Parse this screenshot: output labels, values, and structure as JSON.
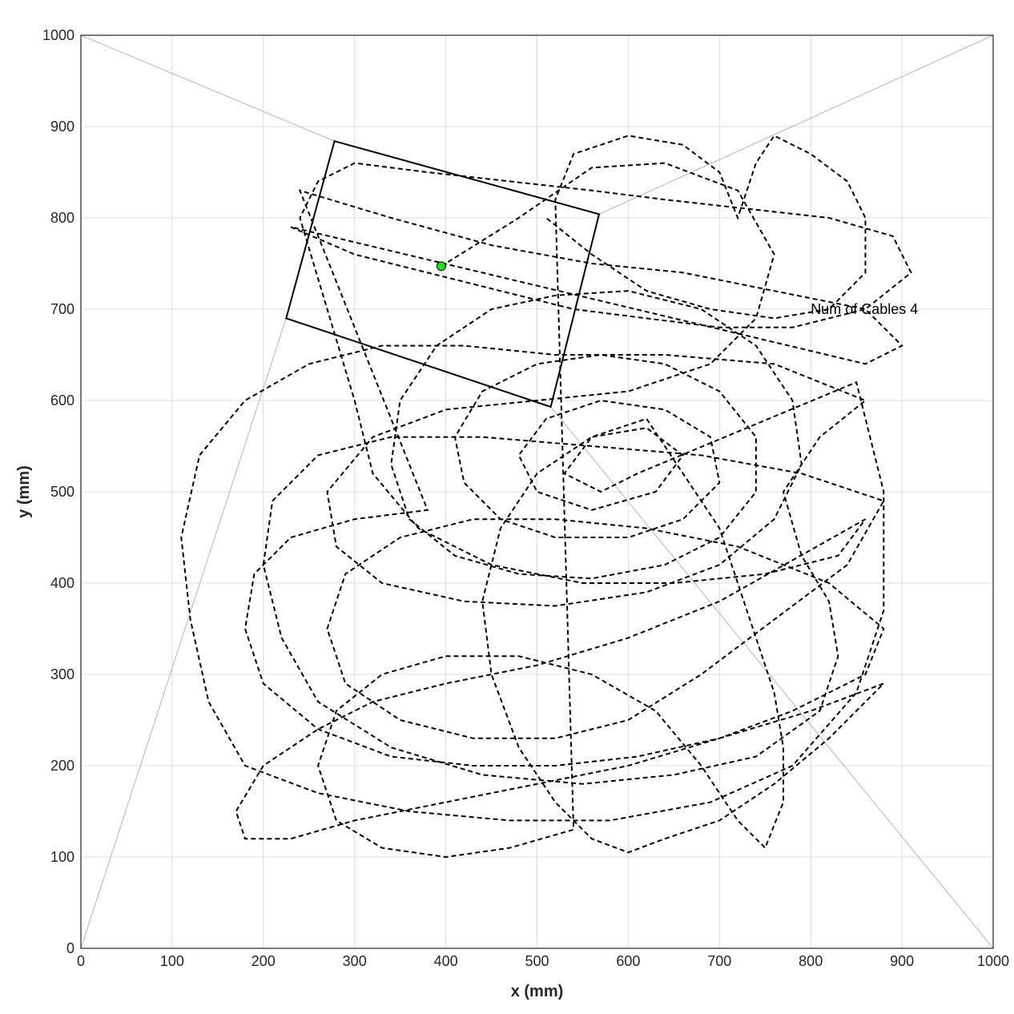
{
  "chart_data": {
    "type": "line",
    "title": "",
    "xlabel": "x (mm)",
    "ylabel": "y (mm)",
    "xlim": [
      0,
      1000
    ],
    "ylim": [
      0,
      1000
    ],
    "xticks": [
      0,
      100,
      200,
      300,
      400,
      500,
      600,
      700,
      800,
      900,
      1000
    ],
    "yticks": [
      0,
      100,
      200,
      300,
      400,
      500,
      600,
      700,
      800,
      900,
      1000
    ],
    "grid": true,
    "annotation": {
      "text": "Num of Cables 4",
      "x": 800,
      "y": 700
    },
    "anchors": [
      [
        0,
        0
      ],
      [
        1000,
        0
      ],
      [
        1000,
        1000
      ],
      [
        0,
        1000
      ]
    ],
    "platform_corners": [
      [
        225,
        690
      ],
      [
        515,
        593
      ],
      [
        568,
        804
      ],
      [
        278,
        884
      ]
    ],
    "end_effector": {
      "x": 395,
      "y": 747,
      "color": "#22dd22"
    },
    "trajectory_style": "black dashed",
    "trajectory": [
      [
        395,
        747
      ],
      [
        480,
        800
      ],
      [
        560,
        855
      ],
      [
        640,
        860
      ],
      [
        720,
        830
      ],
      [
        760,
        760
      ],
      [
        740,
        690
      ],
      [
        690,
        640
      ],
      [
        600,
        610
      ],
      [
        500,
        600
      ],
      [
        400,
        590
      ],
      [
        320,
        560
      ],
      [
        270,
        500
      ],
      [
        280,
        440
      ],
      [
        330,
        400
      ],
      [
        420,
        380
      ],
      [
        520,
        375
      ],
      [
        620,
        390
      ],
      [
        700,
        420
      ],
      [
        760,
        470
      ],
      [
        790,
        530
      ],
      [
        780,
        600
      ],
      [
        740,
        660
      ],
      [
        680,
        700
      ],
      [
        600,
        720
      ],
      [
        520,
        715
      ],
      [
        450,
        700
      ],
      [
        390,
        660
      ],
      [
        350,
        600
      ],
      [
        340,
        530
      ],
      [
        360,
        470
      ],
      [
        410,
        430
      ],
      [
        480,
        410
      ],
      [
        560,
        405
      ],
      [
        640,
        420
      ],
      [
        700,
        450
      ],
      [
        740,
        500
      ],
      [
        740,
        560
      ],
      [
        700,
        610
      ],
      [
        640,
        640
      ],
      [
        570,
        650
      ],
      [
        500,
        640
      ],
      [
        440,
        610
      ],
      [
        410,
        560
      ],
      [
        420,
        510
      ],
      [
        460,
        470
      ],
      [
        520,
        450
      ],
      [
        600,
        450
      ],
      [
        660,
        470
      ],
      [
        700,
        510
      ],
      [
        690,
        560
      ],
      [
        640,
        590
      ],
      [
        570,
        600
      ],
      [
        510,
        580
      ],
      [
        480,
        540
      ],
      [
        500,
        500
      ],
      [
        560,
        480
      ],
      [
        630,
        500
      ],
      [
        660,
        540
      ],
      [
        620,
        570
      ],
      [
        560,
        560
      ],
      [
        530,
        520
      ],
      [
        570,
        500
      ],
      [
        610,
        520
      ],
      [
        850,
        620
      ],
      [
        880,
        500
      ],
      [
        880,
        370
      ],
      [
        850,
        280
      ],
      [
        780,
        200
      ],
      [
        690,
        160
      ],
      [
        580,
        140
      ],
      [
        470,
        140
      ],
      [
        360,
        150
      ],
      [
        260,
        170
      ],
      [
        180,
        200
      ],
      [
        140,
        270
      ],
      [
        120,
        360
      ],
      [
        110,
        450
      ],
      [
        130,
        540
      ],
      [
        180,
        600
      ],
      [
        250,
        640
      ],
      [
        330,
        660
      ],
      [
        420,
        660
      ],
      [
        520,
        650
      ],
      [
        640,
        650
      ],
      [
        760,
        640
      ],
      [
        860,
        600
      ],
      [
        810,
        560
      ],
      [
        770,
        500
      ],
      [
        790,
        430
      ],
      [
        820,
        380
      ],
      [
        830,
        320
      ],
      [
        810,
        260
      ],
      [
        740,
        210
      ],
      [
        650,
        190
      ],
      [
        550,
        180
      ],
      [
        440,
        190
      ],
      [
        340,
        220
      ],
      [
        260,
        270
      ],
      [
        220,
        340
      ],
      [
        200,
        420
      ],
      [
        210,
        490
      ],
      [
        260,
        540
      ],
      [
        340,
        560
      ],
      [
        440,
        560
      ],
      [
        560,
        550
      ],
      [
        680,
        540
      ],
      [
        790,
        520
      ],
      [
        880,
        490
      ],
      [
        840,
        420
      ],
      [
        760,
        360
      ],
      [
        680,
        300
      ],
      [
        600,
        250
      ],
      [
        520,
        230
      ],
      [
        430,
        230
      ],
      [
        350,
        250
      ],
      [
        290,
        290
      ],
      [
        270,
        350
      ],
      [
        290,
        410
      ],
      [
        350,
        450
      ],
      [
        430,
        470
      ],
      [
        520,
        470
      ],
      [
        620,
        460
      ],
      [
        720,
        440
      ],
      [
        820,
        400
      ],
      [
        880,
        350
      ],
      [
        860,
        300
      ],
      [
        780,
        260
      ],
      [
        700,
        230
      ],
      [
        610,
        210
      ],
      [
        520,
        200
      ],
      [
        430,
        200
      ],
      [
        340,
        210
      ],
      [
        260,
        240
      ],
      [
        200,
        290
      ],
      [
        180,
        350
      ],
      [
        190,
        410
      ],
      [
        230,
        450
      ],
      [
        300,
        470
      ],
      [
        380,
        480
      ],
      [
        240,
        830
      ],
      [
        340,
        800
      ],
      [
        450,
        770
      ],
      [
        560,
        750
      ],
      [
        660,
        740
      ],
      [
        760,
        720
      ],
      [
        860,
        700
      ],
      [
        900,
        660
      ],
      [
        860,
        640
      ],
      [
        230,
        790
      ],
      [
        300,
        760
      ],
      [
        380,
        740
      ],
      [
        460,
        720
      ],
      [
        540,
        700
      ],
      [
        620,
        690
      ],
      [
        700,
        680
      ],
      [
        780,
        680
      ],
      [
        860,
        700
      ],
      [
        910,
        740
      ],
      [
        890,
        780
      ],
      [
        820,
        800
      ],
      [
        730,
        810
      ],
      [
        640,
        820
      ],
      [
        560,
        830
      ],
      [
        470,
        840
      ],
      [
        380,
        850
      ],
      [
        300,
        860
      ],
      [
        260,
        840
      ],
      [
        240,
        800
      ],
      [
        300,
        600
      ],
      [
        320,
        520
      ],
      [
        370,
        460
      ],
      [
        450,
        420
      ],
      [
        550,
        400
      ],
      [
        650,
        400
      ],
      [
        750,
        410
      ],
      [
        830,
        430
      ],
      [
        860,
        470
      ],
      [
        700,
        380
      ],
      [
        600,
        340
      ],
      [
        500,
        310
      ],
      [
        400,
        290
      ],
      [
        320,
        270
      ],
      [
        260,
        240
      ],
      [
        200,
        200
      ],
      [
        170,
        150
      ],
      [
        180,
        120
      ],
      [
        230,
        120
      ],
      [
        300,
        140
      ],
      [
        400,
        160
      ],
      [
        500,
        180
      ],
      [
        600,
        200
      ],
      [
        700,
        230
      ],
      [
        800,
        260
      ],
      [
        880,
        290
      ],
      [
        820,
        230
      ],
      [
        760,
        180
      ],
      [
        700,
        140
      ],
      [
        640,
        120
      ],
      [
        600,
        105
      ],
      [
        560,
        120
      ],
      [
        520,
        160
      ],
      [
        480,
        220
      ],
      [
        450,
        300
      ],
      [
        440,
        380
      ],
      [
        460,
        460
      ],
      [
        500,
        520
      ],
      [
        560,
        560
      ],
      [
        620,
        580
      ],
      [
        660,
        520
      ],
      [
        700,
        460
      ],
      [
        720,
        400
      ],
      [
        740,
        340
      ],
      [
        760,
        280
      ],
      [
        770,
        220
      ],
      [
        770,
        160
      ],
      [
        750,
        110
      ],
      [
        720,
        140
      ],
      [
        680,
        200
      ],
      [
        630,
        260
      ],
      [
        560,
        300
      ],
      [
        480,
        320
      ],
      [
        400,
        320
      ],
      [
        330,
        300
      ],
      [
        280,
        260
      ],
      [
        260,
        200
      ],
      [
        280,
        140
      ],
      [
        330,
        110
      ],
      [
        400,
        100
      ],
      [
        470,
        110
      ],
      [
        540,
        130
      ],
      [
        520,
        820
      ],
      [
        540,
        870
      ],
      [
        600,
        890
      ],
      [
        660,
        880
      ],
      [
        700,
        850
      ],
      [
        720,
        800
      ],
      [
        740,
        860
      ],
      [
        760,
        890
      ],
      [
        800,
        870
      ],
      [
        840,
        840
      ],
      [
        860,
        800
      ],
      [
        860,
        740
      ],
      [
        820,
        700
      ],
      [
        760,
        690
      ],
      [
        690,
        700
      ],
      [
        620,
        720
      ],
      [
        560,
        760
      ],
      [
        510,
        800
      ]
    ]
  }
}
